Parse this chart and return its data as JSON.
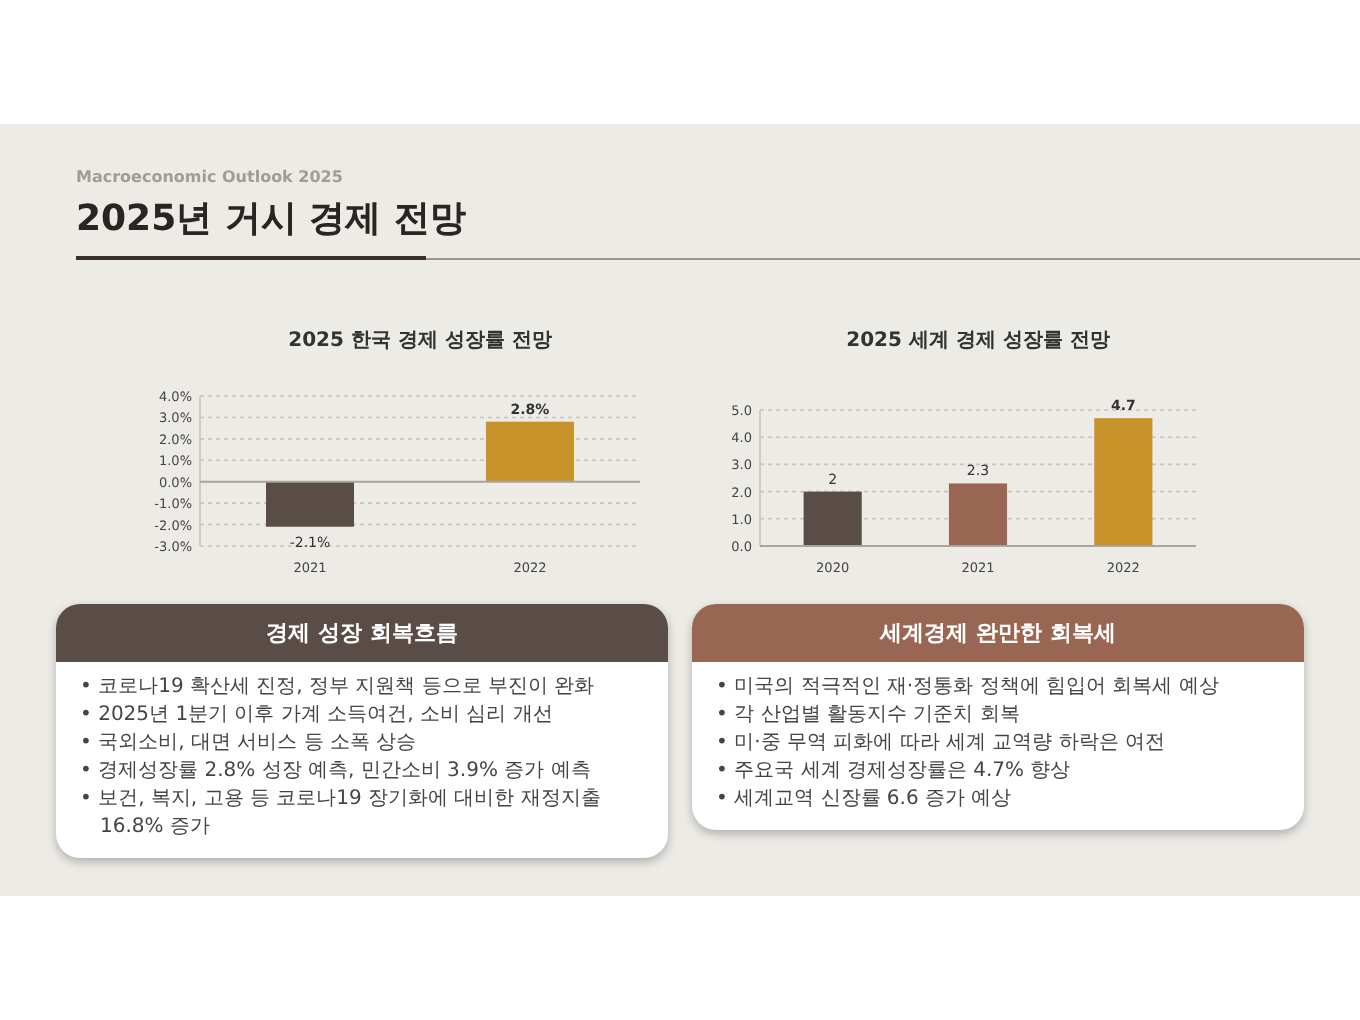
{
  "chart_data": [
    {
      "type": "other",
      "subtitle": "Macroeconomic Outlook 2025",
      "title": "2025년 거시 경제 전망"
    },
    {
      "type": "bar",
      "title": "2025 한국 경제 성장률 전망",
      "categories": [
        "2021",
        "2022"
      ],
      "values": [
        -2.1,
        2.8
      ],
      "colors": [
        "#5a4d47",
        "#c8922a"
      ],
      "value_labels": [
        "-2.1%",
        "2.8%"
      ],
      "ylim": [
        -3,
        4
      ],
      "yticks": [
        {
          "value": -3,
          "label": "-3.0%"
        },
        {
          "value": -2,
          "label": "-2.0%"
        },
        {
          "value": -1,
          "label": "-1.0%"
        },
        {
          "value": 0,
          "label": "0.0%"
        },
        {
          "value": 1,
          "label": "1.0%"
        },
        {
          "value": 2,
          "label": "2.0%"
        },
        {
          "value": 3,
          "label": "3.0%"
        },
        {
          "value": 4,
          "label": "4.0%"
        }
      ],
      "grid": "y"
    },
    {
      "type": "bar",
      "title": "2025 세계 경제 성장률 전망",
      "categories": [
        "2020",
        "2021",
        "2022"
      ],
      "values": [
        2,
        2.3,
        4.7
      ],
      "colors": [
        "#5a4d47",
        "#9a6654",
        "#c8922a"
      ],
      "data_labels": true,
      "ylim": [
        0,
        5
      ],
      "yticks": [
        {
          "value": 0,
          "label": "0.0"
        },
        {
          "value": 1,
          "label": "1.0"
        },
        {
          "value": 2,
          "label": "2.0"
        },
        {
          "value": 3,
          "label": "3.0"
        },
        {
          "value": 4,
          "label": "4.0"
        },
        {
          "value": 5,
          "label": "5.0"
        }
      ],
      "grid": "y"
    },
    {
      "type": "other",
      "title": "경제 성장 회복흐름",
      "color": "#5a4d47",
      "annotations": [
        "• 코로나19 확산세 진정, 정부 지원책 등으로 부진이 완화",
        "• 2025년 1분기 이후 가계 소득여건, 소비 심리 개선",
        "• 국외소비, 대면 서비스 등 소폭 상승",
        "• 경제성장률 2.8% 성장 예측, 민간소비 3.9% 증가 예측",
        "• 보건, 복지, 고용 등 코로나19 장기화에 대비한 재정지출 16.8% 증가"
      ]
    },
    {
      "type": "other",
      "title": "세계경제 완만한 회복세",
      "color": "#9a6654",
      "annotations": [
        "• 미국의 적극적인 재·정통화 정책에 힘입어 회복세 예상",
        "• 각 산업별 활동지수 기준치 회복",
        "• 미·중 무역 피화에 따라 세계 교역량 하락은 여전",
        "• 주요국 세계 경제성장률은 4.7% 향상",
        "• 세계교역 신장률 6.6 증가 예상"
      ]
    }
  ]
}
